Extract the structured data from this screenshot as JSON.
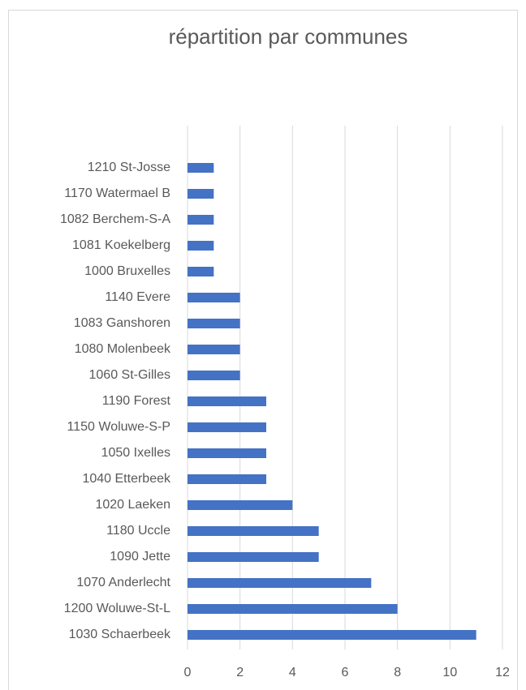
{
  "chart_data": {
    "type": "barh",
    "title": "répartition par communes",
    "categories": [
      "1210 St-Josse",
      "1170 Watermael B",
      "1082 Berchem-S-A",
      "1081 Koekelberg",
      "1000 Bruxelles",
      "1140 Evere",
      "1083 Ganshoren",
      "1080 Molenbeek",
      "1060 St-Gilles",
      "1190 Forest",
      "1150 Woluwe-S-P",
      "1050 Ixelles",
      "1040 Etterbeek",
      "1020 Laeken",
      "1180 Uccle",
      "1090 Jette",
      "1070 Anderlecht",
      "1200 Woluwe-St-L",
      "1030 Schaerbeek"
    ],
    "values": [
      1,
      1,
      1,
      1,
      1,
      2,
      2,
      2,
      2,
      3,
      3,
      3,
      3,
      4,
      5,
      5,
      7,
      8,
      11
    ],
    "color": "#4472c4",
    "xlim": [
      0,
      12
    ],
    "xticks": [
      0,
      2,
      4,
      6,
      8,
      10,
      12
    ],
    "grid": true
  }
}
